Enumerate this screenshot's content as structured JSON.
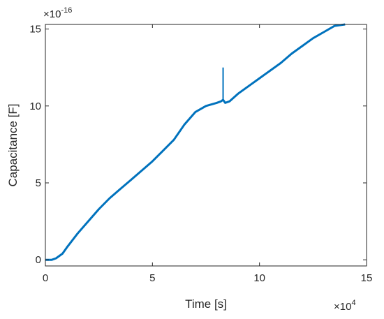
{
  "chart_data": {
    "type": "line",
    "xlabel": "Time [s]",
    "ylabel": "Capacitance [F]",
    "x_multiplier": {
      "base": "×10",
      "exponent": "4"
    },
    "y_multiplier": {
      "base": "×10",
      "exponent": "-16"
    },
    "xlim": [
      0,
      15
    ],
    "ylim": [
      -0.4,
      15.3
    ],
    "x_ticks": [
      0,
      5,
      10,
      15
    ],
    "y_ticks": [
      0,
      5,
      10,
      15
    ],
    "x_tick_labels": [
      "0",
      "5",
      "10",
      "15"
    ],
    "y_tick_labels": [
      "0",
      "5",
      "10",
      "15"
    ],
    "grid": false,
    "series": [
      {
        "color": "#0072BD",
        "x": [
          0,
          0.3,
          0.5,
          0.8,
          1.0,
          1.5,
          2.0,
          2.5,
          3.0,
          3.5,
          4.0,
          4.5,
          5.0,
          5.5,
          6.0,
          6.5,
          7.0,
          7.5,
          8.0,
          8.2,
          8.3,
          8.4,
          8.6,
          9.0,
          9.5,
          10.0,
          10.5,
          11.0,
          11.5,
          12.0,
          12.5,
          13.0,
          13.5,
          14.0
        ],
        "y": [
          0.0,
          0.0,
          0.1,
          0.4,
          0.8,
          1.7,
          2.5,
          3.3,
          4.0,
          4.6,
          5.2,
          5.8,
          6.4,
          7.1,
          7.8,
          8.8,
          9.6,
          10.0,
          10.2,
          10.3,
          10.4,
          10.2,
          10.3,
          10.8,
          11.3,
          11.8,
          12.3,
          12.8,
          13.4,
          13.9,
          14.4,
          14.8,
          15.2,
          15.3
        ]
      }
    ],
    "spikes": [
      {
        "x": 8.3,
        "y": 12.5
      }
    ]
  }
}
